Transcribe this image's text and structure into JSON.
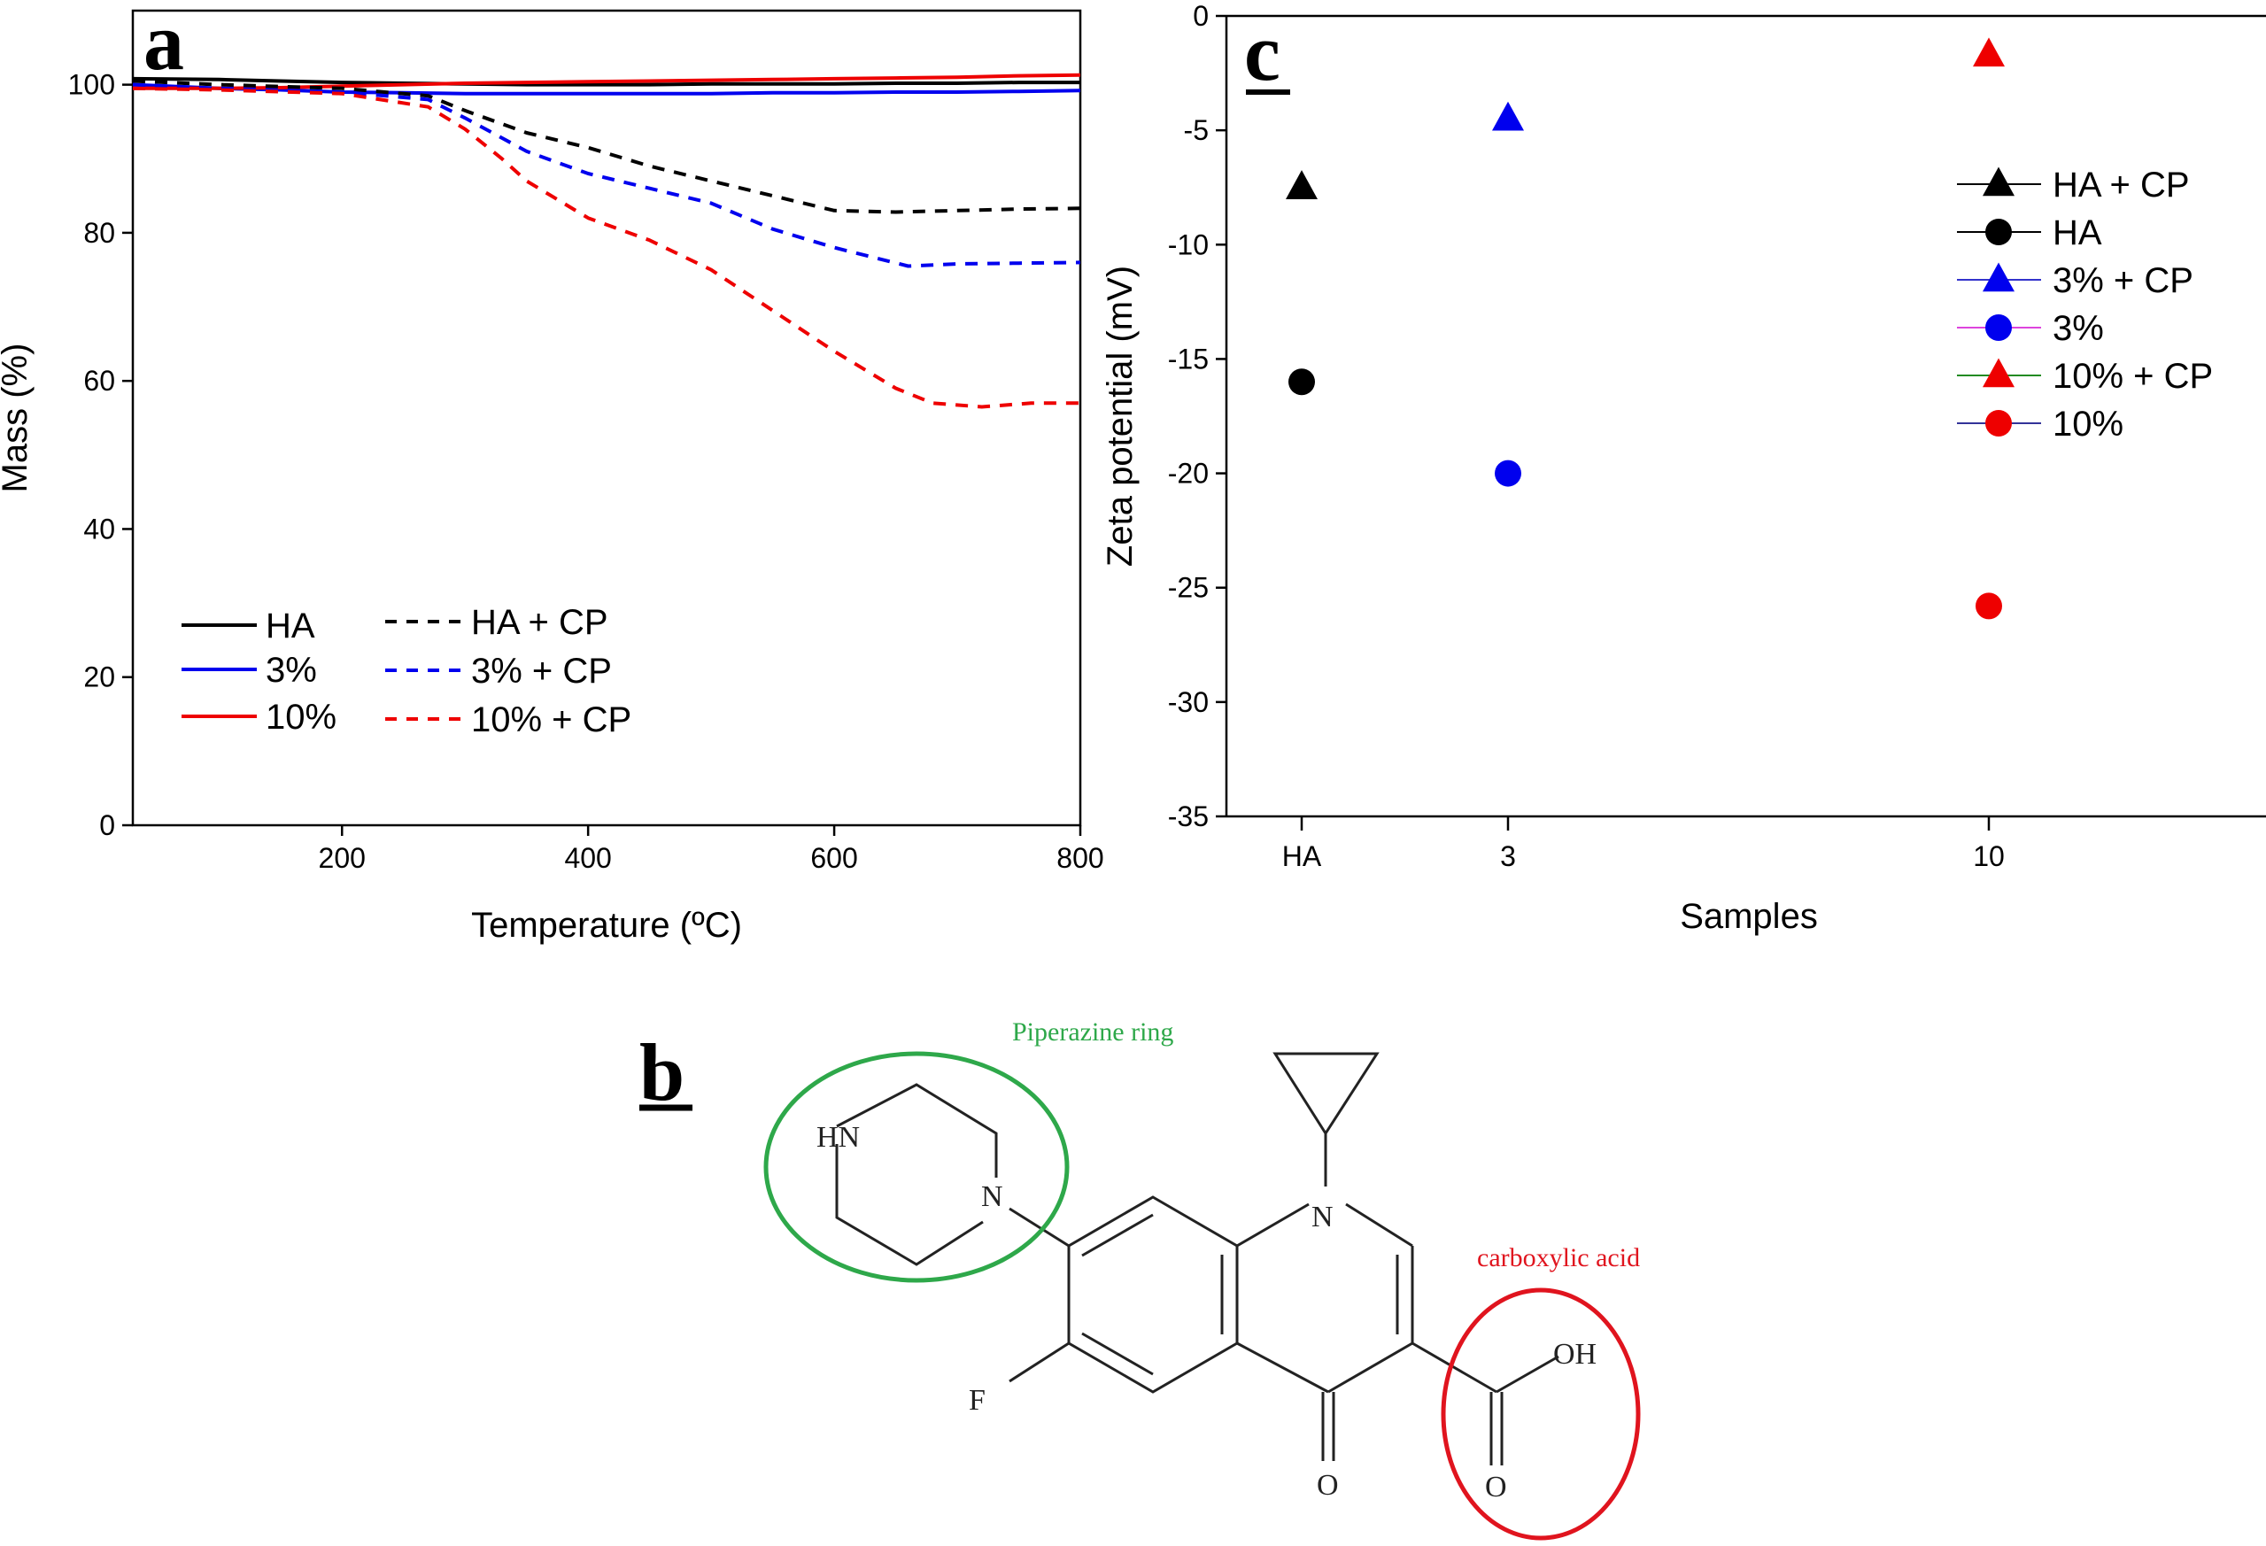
{
  "panels": {
    "a": "a",
    "b": "b",
    "c": "c"
  },
  "chart_data": [
    {
      "panel": "a",
      "type": "line",
      "title": "",
      "xlabel": "Temperature (ºC)",
      "ylabel": "Mass (%)",
      "xlim": [
        30,
        800
      ],
      "ylim": [
        0,
        110
      ],
      "xticks": [
        200,
        400,
        600,
        800
      ],
      "yticks": [
        0,
        20,
        40,
        60,
        80,
        100
      ],
      "legend_position": "bottom-left",
      "series": [
        {
          "name": "HA",
          "color": "#000000",
          "style": "solid",
          "x": [
            30,
            100,
            150,
            200,
            250,
            300,
            350,
            400,
            450,
            500,
            550,
            600,
            650,
            700,
            750,
            800
          ],
          "y": [
            100.8,
            100.7,
            100.5,
            100.3,
            100.2,
            100.1,
            100.0,
            100.0,
            100.0,
            100.1,
            100.1,
            100.1,
            100.2,
            100.2,
            100.3,
            100.3
          ]
        },
        {
          "name": "3%",
          "color": "#0000ee",
          "style": "solid",
          "x": [
            30,
            100,
            150,
            200,
            250,
            300,
            350,
            400,
            450,
            500,
            550,
            600,
            650,
            700,
            750,
            800
          ],
          "y": [
            100.0,
            99.5,
            99.3,
            99.0,
            98.9,
            98.8,
            98.8,
            98.8,
            98.8,
            98.8,
            98.9,
            98.9,
            99.0,
            99.0,
            99.1,
            99.2
          ]
        },
        {
          "name": "10%",
          "color": "#ee0000",
          "style": "solid",
          "x": [
            30,
            100,
            150,
            200,
            250,
            300,
            350,
            400,
            450,
            500,
            550,
            600,
            650,
            700,
            750,
            800
          ],
          "y": [
            99.5,
            99.5,
            99.6,
            99.8,
            100.0,
            100.2,
            100.3,
            100.4,
            100.5,
            100.6,
            100.7,
            100.8,
            100.9,
            101.0,
            101.2,
            101.3
          ]
        },
        {
          "name": "HA + CP",
          "color": "#000000",
          "style": "dashed",
          "x": [
            30,
            100,
            200,
            270,
            300,
            350,
            400,
            450,
            500,
            550,
            600,
            650,
            700,
            750,
            800
          ],
          "y": [
            100.5,
            100.0,
            99.5,
            98.5,
            96.5,
            93.5,
            91.5,
            89.0,
            87.0,
            85.0,
            83.0,
            82.8,
            83.0,
            83.2,
            83.3
          ]
        },
        {
          "name": "3% + CP",
          "color": "#0000ee",
          "style": "dashed",
          "x": [
            30,
            100,
            200,
            270,
            300,
            350,
            400,
            450,
            500,
            550,
            600,
            660,
            700,
            750,
            800
          ],
          "y": [
            100.0,
            99.5,
            99.0,
            98.0,
            95.5,
            91.0,
            88.0,
            86.0,
            84.0,
            80.5,
            78.0,
            75.5,
            75.8,
            75.9,
            76.0
          ]
        },
        {
          "name": "10% + CP",
          "color": "#ee0000",
          "style": "dashed",
          "x": [
            30,
            100,
            200,
            270,
            300,
            330,
            350,
            400,
            450,
            500,
            550,
            600,
            650,
            680,
            720,
            760,
            800
          ],
          "y": [
            99.5,
            99.3,
            98.8,
            97.0,
            94.0,
            90.0,
            87.0,
            82.0,
            79.0,
            75.0,
            69.5,
            64.0,
            59.0,
            57.0,
            56.5,
            57.0,
            57.0
          ]
        }
      ]
    },
    {
      "panel": "c",
      "type": "scatter",
      "title": "",
      "xlabel": "Samples",
      "ylabel": "Zeta potential (mV)",
      "categories": [
        "HA",
        "3",
        "10"
      ],
      "ylim": [
        -35,
        0
      ],
      "yticks": [
        0,
        -5,
        -10,
        -15,
        -20,
        -25,
        -30,
        -35
      ],
      "legend_position": "top-right",
      "series": [
        {
          "name": "HA + CP",
          "marker": "triangle",
          "color": "#000000",
          "line_color": "#000000",
          "category": "HA",
          "value": -7.5
        },
        {
          "name": "HA",
          "marker": "circle",
          "color": "#000000",
          "line_color": "#000000",
          "category": "HA",
          "value": -16.0
        },
        {
          "name": "3% + CP",
          "marker": "triangle",
          "color": "#0000ee",
          "line_color": "#3333cc",
          "category": "3",
          "value": -4.5
        },
        {
          "name": "3%",
          "marker": "circle",
          "color": "#0000ee",
          "line_color": "#dd44dd",
          "category": "3",
          "value": -20.0
        },
        {
          "name": "10% + CP",
          "marker": "triangle",
          "color": "#ee0000",
          "line_color": "#228b22",
          "category": "10",
          "value": -1.7
        },
        {
          "name": "10%",
          "marker": "circle",
          "color": "#ee0000",
          "line_color": "#333399",
          "category": "10",
          "value": -25.8
        }
      ]
    }
  ],
  "molecule": {
    "atoms": {
      "hn": "HN",
      "n_pip": "N",
      "n_ring": "N",
      "f": "F",
      "oh": "OH",
      "o_acid": "O",
      "o_keto": "O"
    },
    "annotations": {
      "piperazine": "Piperazine ring",
      "carboxylic": "carboxylic acid"
    },
    "colors": {
      "piperazine": "#2ea84a",
      "carboxylic": "#e0141e"
    }
  }
}
